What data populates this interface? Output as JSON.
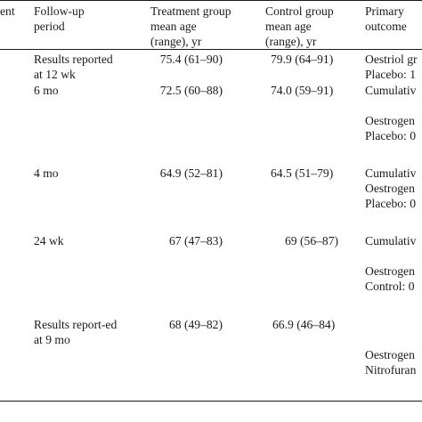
{
  "table": {
    "headers": [
      [
        "ent"
      ],
      [
        "Follow-up",
        "period"
      ],
      [
        "Treatment group",
        "mean age",
        "(range), yr"
      ],
      [
        "Control group",
        "mean age",
        "(range), yr"
      ],
      [
        "Primary",
        "outcome"
      ]
    ],
    "rows": [
      {
        "followup": [
          "Results reported",
          "at 12 wk"
        ],
        "treatment_age": "75.4 (61–90)",
        "control_age": "79.9 (64–91)",
        "outcome": [
          "Oestriol gr",
          "Placebo: 1"
        ]
      },
      {
        "followup": [
          "6 mo"
        ],
        "treatment_age": "72.5 (60–88)",
        "control_age": "74.0 (59–91)",
        "outcome": [
          "Cumulativ",
          "",
          "Oestrogen",
          "Placebo: 0"
        ]
      },
      {
        "followup": [
          "4 mo"
        ],
        "treatment_age": "64.9 (52–81)",
        "control_age": "64.5 (51–79)",
        "outcome": [
          "Cumulativ",
          "Oestrogen",
          "Placebo: 0"
        ]
      },
      {
        "followup": [
          "24 wk"
        ],
        "treatment_age": "67 (47–83)",
        "control_age": "69 (56–87)",
        "outcome": [
          "Cumulativ",
          "",
          "Oestrogen",
          "Control: 0"
        ]
      },
      {
        "followup": [
          "Results report-ed",
          "at 9 mo"
        ],
        "treatment_age": "68 (49–82)",
        "control_age": "66.9 (46–84)",
        "outcome": [
          "",
          "",
          "Oestrogen",
          "Nitrofuran"
        ]
      }
    ]
  }
}
